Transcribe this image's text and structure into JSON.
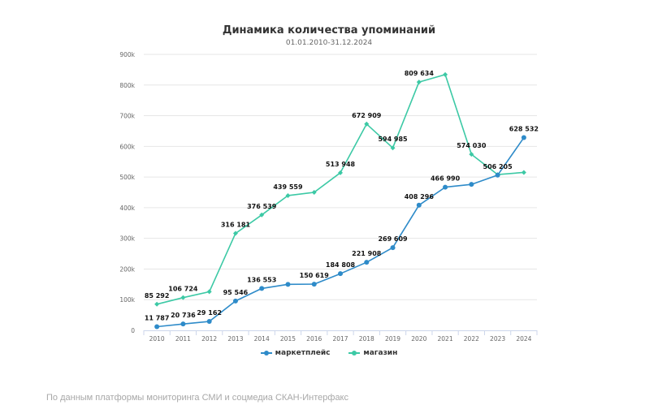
{
  "chart_data": {
    "type": "line",
    "title": "Динамика количества упоминаний",
    "subtitle": "01.01.2010-31.12.2024",
    "xlabel": "",
    "ylabel": "",
    "categories": [
      "2010",
      "2011",
      "2012",
      "2013",
      "2014",
      "2015",
      "2016",
      "2017",
      "2018",
      "2019",
      "2020",
      "2021",
      "2022",
      "2023",
      "2024"
    ],
    "ylim": [
      0,
      900000
    ],
    "yticks": [
      {
        "value": 0,
        "label": "0"
      },
      {
        "value": 100000,
        "label": "100k"
      },
      {
        "value": 200000,
        "label": "200k"
      },
      {
        "value": 300000,
        "label": "300k"
      },
      {
        "value": 400000,
        "label": "400k"
      },
      {
        "value": 500000,
        "label": "500k"
      },
      {
        "value": 600000,
        "label": "600k"
      },
      {
        "value": 700000,
        "label": "700k"
      },
      {
        "value": 800000,
        "label": "800k"
      },
      {
        "value": 900000,
        "label": "900k"
      }
    ],
    "grid": true,
    "legend_position": "bottom-center",
    "series": [
      {
        "name": "маркетплейс",
        "color": "#2E8BC9",
        "values": [
          11787,
          20736,
          29162,
          95546,
          136553,
          150000,
          150619,
          184808,
          221908,
          269609,
          408296,
          466990,
          476000,
          506205,
          628532
        ],
        "labels": [
          "11 787",
          "20 736",
          "29 162",
          "95 546",
          "136 553",
          "",
          "150 619",
          "184 808",
          "221 908",
          "269 609",
          "408 296",
          "466 990",
          "",
          "506 205",
          "628 532"
        ]
      },
      {
        "name": "магазин",
        "color": "#3CC9A5",
        "values": [
          85292,
          106724,
          126000,
          316181,
          376539,
          439559,
          450000,
          513948,
          672909,
          594985,
          809634,
          834000,
          574030,
          508000,
          515000
        ],
        "labels": [
          "85 292",
          "106 724",
          "",
          "316 181",
          "376 539",
          "439 559",
          "",
          "513 948",
          "672 909",
          "594 985",
          "809 634",
          "",
          "574 030",
          "",
          ""
        ]
      }
    ]
  },
  "legend": {
    "items": [
      {
        "label": "маркетплейс",
        "color": "#2E8BC9"
      },
      {
        "label": "магазин",
        "color": "#3CC9A5"
      }
    ]
  },
  "footer": {
    "source_text": "По данным платформы мониторинга СМИ и соцмедиа СКАН-Интерфакс"
  }
}
